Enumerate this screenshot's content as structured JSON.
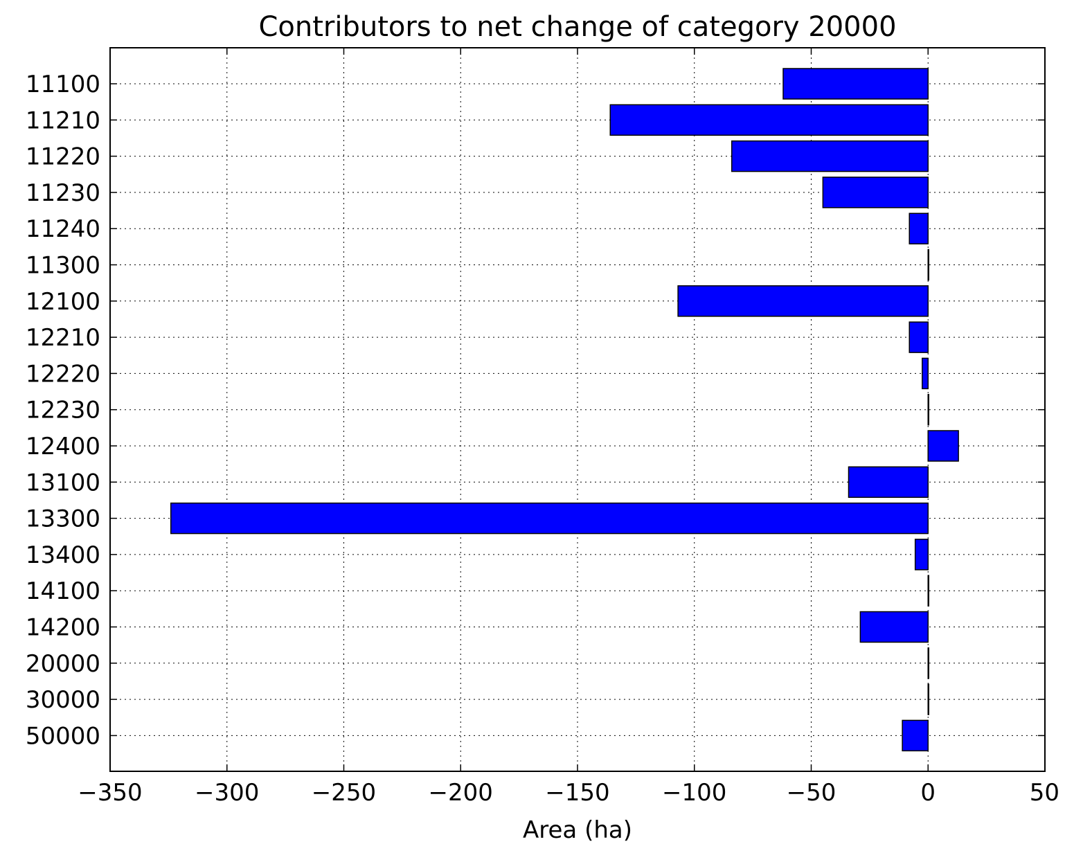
{
  "chart_data": {
    "type": "bar",
    "orientation": "horizontal",
    "title": "Contributors to net change of category 20000",
    "xlabel": "Area (ha)",
    "ylabel": "",
    "xlim": [
      -350,
      50
    ],
    "xticks": [
      -350,
      -300,
      -250,
      -200,
      -150,
      -100,
      -50,
      0,
      50
    ],
    "xtick_labels": [
      "−350",
      "−300",
      "−250",
      "−200",
      "−150",
      "−100",
      "−50",
      "0",
      "50"
    ],
    "grid": true,
    "bar_color": "#0000ff",
    "edge_color": "#000000",
    "categories": [
      "11100",
      "11210",
      "11220",
      "11230",
      "11240",
      "11300",
      "12100",
      "12210",
      "12220",
      "12230",
      "12400",
      "13100",
      "13300",
      "13400",
      "14100",
      "14200",
      "20000",
      "30000",
      "50000"
    ],
    "values": [
      -62,
      -136,
      -84,
      -45,
      -8,
      0,
      -107,
      -8,
      -2.5,
      0,
      13,
      -34,
      -324,
      -5.5,
      0,
      -29,
      0,
      0,
      -11
    ]
  }
}
